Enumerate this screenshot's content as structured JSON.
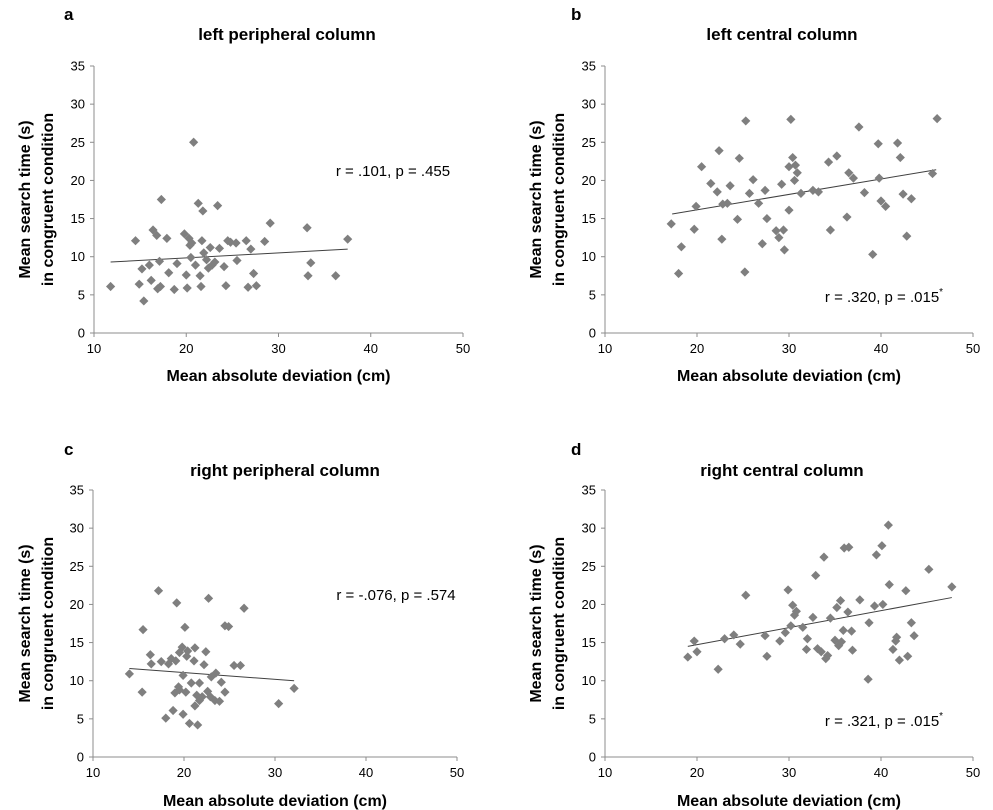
{
  "chart_data": [
    {
      "type": "scatter",
      "panel_label": "a",
      "title": "left peripheral column",
      "xlabel": "Mean absolute deviation (cm)",
      "ylabel_line1": "Mean search time (s)",
      "ylabel_line2": "in congruent condition",
      "xlim": [
        10,
        50
      ],
      "ylim": [
        0,
        35
      ],
      "xticks": [
        10,
        20,
        30,
        40,
        50
      ],
      "yticks": [
        0,
        5,
        10,
        15,
        20,
        25,
        30,
        35
      ],
      "stat": "r = .101, p = .455",
      "stat_sup": "",
      "trend": [
        [
          11.8,
          9.3
        ],
        [
          37.5,
          11.0
        ]
      ],
      "points": [
        [
          11.8,
          6.1
        ],
        [
          14.5,
          12.1
        ],
        [
          14.9,
          6.4
        ],
        [
          15.2,
          8.4
        ],
        [
          15.4,
          4.2
        ],
        [
          16,
          8.9
        ],
        [
          16.2,
          6.9
        ],
        [
          16.4,
          13.5
        ],
        [
          16.8,
          12.8
        ],
        [
          16.9,
          5.8
        ],
        [
          17.1,
          9.4
        ],
        [
          17.2,
          6.1
        ],
        [
          17.3,
          17.5
        ],
        [
          17.9,
          12.4
        ],
        [
          18.1,
          7.9
        ],
        [
          18.7,
          5.7
        ],
        [
          19,
          9.1
        ],
        [
          19.8,
          13
        ],
        [
          20,
          7.6
        ],
        [
          20.1,
          5.9
        ],
        [
          20.3,
          12.4
        ],
        [
          20.4,
          11.5
        ],
        [
          20.5,
          9.9
        ],
        [
          20.6,
          11.8
        ],
        [
          20.8,
          25
        ],
        [
          21,
          8.9
        ],
        [
          21.3,
          17
        ],
        [
          21.5,
          7.5
        ],
        [
          21.6,
          6.1
        ],
        [
          21.7,
          12.1
        ],
        [
          21.8,
          16
        ],
        [
          21.9,
          10.5
        ],
        [
          22.2,
          9.6
        ],
        [
          22.4,
          8.5
        ],
        [
          22.6,
          11.2
        ],
        [
          22.8,
          8.9
        ],
        [
          23.1,
          9.3
        ],
        [
          23.4,
          16.7
        ],
        [
          23.6,
          11.1
        ],
        [
          24.1,
          8.7
        ],
        [
          24.3,
          6.2
        ],
        [
          24.5,
          12.1
        ],
        [
          24.8,
          11.9
        ],
        [
          25.4,
          11.8
        ],
        [
          25.5,
          9.5
        ],
        [
          26.5,
          12.1
        ],
        [
          26.7,
          6
        ],
        [
          27,
          11
        ],
        [
          27.3,
          7.8
        ],
        [
          27.6,
          6.2
        ],
        [
          28.5,
          12
        ],
        [
          29.1,
          14.4
        ],
        [
          33.1,
          13.8
        ],
        [
          33.2,
          7.5
        ],
        [
          33.5,
          9.2
        ],
        [
          36.2,
          7.5
        ],
        [
          37.5,
          12.3
        ]
      ]
    },
    {
      "type": "scatter",
      "panel_label": "b",
      "title": "left central column",
      "xlabel": "Mean absolute deviation (cm)",
      "ylabel_line1": "Mean search time (s)",
      "ylabel_line2": "in congruent condition",
      "xlim": [
        10,
        50
      ],
      "ylim": [
        0,
        35
      ],
      "xticks": [
        10,
        20,
        30,
        40,
        50
      ],
      "yticks": [
        0,
        5,
        10,
        15,
        20,
        25,
        30,
        35
      ],
      "stat": "r = .320, p = .015",
      "stat_sup": "*",
      "trend": [
        [
          17.3,
          15.6
        ],
        [
          46,
          21.4
        ]
      ],
      "points": [
        [
          17.2,
          14.3
        ],
        [
          18,
          7.8
        ],
        [
          18.3,
          11.3
        ],
        [
          19.7,
          13.6
        ],
        [
          19.9,
          16.6
        ],
        [
          20.5,
          21.8
        ],
        [
          21.5,
          19.6
        ],
        [
          22.2,
          18.5
        ],
        [
          22.4,
          23.9
        ],
        [
          22.7,
          12.3
        ],
        [
          22.8,
          16.9
        ],
        [
          23.3,
          17
        ],
        [
          23.6,
          19.3
        ],
        [
          24.4,
          14.9
        ],
        [
          24.6,
          22.9
        ],
        [
          25.2,
          8
        ],
        [
          25.3,
          27.8
        ],
        [
          25.7,
          18.3
        ],
        [
          26.1,
          20.1
        ],
        [
          26.7,
          17
        ],
        [
          27.1,
          11.7
        ],
        [
          27.6,
          15
        ],
        [
          27.4,
          18.7
        ],
        [
          28.6,
          13.4
        ],
        [
          28.9,
          12.5
        ],
        [
          29.2,
          19.5
        ],
        [
          29.4,
          13.5
        ],
        [
          29.5,
          10.9
        ],
        [
          30,
          16.1
        ],
        [
          30,
          21.8
        ],
        [
          30.2,
          28
        ],
        [
          30.4,
          23
        ],
        [
          30.6,
          20
        ],
        [
          30.7,
          22
        ],
        [
          30.9,
          21
        ],
        [
          31.3,
          18.3
        ],
        [
          32.6,
          18.7
        ],
        [
          33.2,
          18.5
        ],
        [
          34.3,
          22.4
        ],
        [
          34.5,
          13.5
        ],
        [
          35.2,
          23.2
        ],
        [
          36.3,
          15.2
        ],
        [
          36.5,
          21
        ],
        [
          37,
          20.3
        ],
        [
          37.6,
          27
        ],
        [
          38.2,
          18.4
        ],
        [
          39.1,
          10.3
        ],
        [
          39.7,
          24.8
        ],
        [
          39.8,
          20.3
        ],
        [
          40,
          17.3
        ],
        [
          40.5,
          16.6
        ],
        [
          41.8,
          24.9
        ],
        [
          42.1,
          23
        ],
        [
          42.4,
          18.2
        ],
        [
          42.8,
          12.7
        ],
        [
          43.3,
          17.6
        ],
        [
          45.6,
          20.9
        ],
        [
          46.1,
          28.1
        ]
      ]
    },
    {
      "type": "scatter",
      "panel_label": "c",
      "title": "right peripheral column",
      "xlabel": "Mean absolute deviation (cm)",
      "ylabel_line1": "Mean search time (s)",
      "ylabel_line2": "in congruent condition",
      "xlim": [
        10,
        50
      ],
      "ylim": [
        0,
        35
      ],
      "xticks": [
        10,
        20,
        30,
        40,
        50
      ],
      "yticks": [
        0,
        5,
        10,
        15,
        20,
        25,
        30,
        35
      ],
      "stat": "r = -.076, p = .574",
      "stat_sup": "",
      "trend": [
        [
          14,
          11.6
        ],
        [
          32.1,
          10.0
        ]
      ],
      "points": [
        [
          14,
          10.9
        ],
        [
          15.4,
          8.5
        ],
        [
          15.5,
          16.7
        ],
        [
          16.3,
          13.4
        ],
        [
          16.4,
          12.2
        ],
        [
          17.2,
          21.8
        ],
        [
          17.5,
          12.5
        ],
        [
          18,
          5.1
        ],
        [
          18.3,
          12.2
        ],
        [
          18.6,
          12.9
        ],
        [
          18.8,
          6.1
        ],
        [
          19,
          8.4
        ],
        [
          19.1,
          12.6
        ],
        [
          19.2,
          20.2
        ],
        [
          19.4,
          9.2
        ],
        [
          19.5,
          8.8
        ],
        [
          19.5,
          13.7
        ],
        [
          19.9,
          5.6
        ],
        [
          19.8,
          14.4
        ],
        [
          19.9,
          10.7
        ],
        [
          20.1,
          17
        ],
        [
          20.2,
          8.5
        ],
        [
          20.3,
          13.2
        ],
        [
          20.4,
          13.9
        ],
        [
          20.6,
          4.4
        ],
        [
          20.8,
          9.7
        ],
        [
          21.1,
          12.6
        ],
        [
          21.2,
          6.7
        ],
        [
          21.2,
          14.3
        ],
        [
          21.4,
          8.1
        ],
        [
          21.5,
          4.2
        ],
        [
          21.7,
          9.7
        ],
        [
          21.7,
          7.4
        ],
        [
          22,
          7.9
        ],
        [
          22.2,
          12.1
        ],
        [
          22.4,
          13.8
        ],
        [
          22.6,
          8.6
        ],
        [
          22.7,
          20.8
        ],
        [
          22.9,
          7.9
        ],
        [
          23,
          10.5
        ],
        [
          23.4,
          7.4
        ],
        [
          23.5,
          11
        ],
        [
          23.9,
          7.3
        ],
        [
          24.1,
          9.8
        ],
        [
          24.5,
          8.5
        ],
        [
          24.5,
          17.2
        ],
        [
          24.9,
          17.1
        ],
        [
          25.5,
          12
        ],
        [
          26.2,
          12
        ],
        [
          26.6,
          19.5
        ],
        [
          30.4,
          7
        ],
        [
          32.1,
          9
        ]
      ]
    },
    {
      "type": "scatter",
      "panel_label": "d",
      "title": "right central column",
      "xlabel": "Mean absolute deviation (cm)",
      "ylabel_line1": "Mean search time (s)",
      "ylabel_line2": "in congruent condition",
      "xlim": [
        10,
        50
      ],
      "ylim": [
        0,
        35
      ],
      "xticks": [
        10,
        20,
        30,
        40,
        50
      ],
      "yticks": [
        0,
        5,
        10,
        15,
        20,
        25,
        30,
        35
      ],
      "stat": "r = .321, p = .015",
      "stat_sup": "*",
      "trend": [
        [
          19,
          14.5
        ],
        [
          47.7,
          20.9
        ]
      ],
      "points": [
        [
          19,
          13.1
        ],
        [
          19.7,
          15.2
        ],
        [
          20,
          13.8
        ],
        [
          22.3,
          11.5
        ],
        [
          23,
          15.5
        ],
        [
          24,
          16
        ],
        [
          24.7,
          14.8
        ],
        [
          25.3,
          21.2
        ],
        [
          27.4,
          15.9
        ],
        [
          27.6,
          13.2
        ],
        [
          29,
          15.2
        ],
        [
          29.6,
          16.3
        ],
        [
          29.9,
          21.9
        ],
        [
          30.2,
          17.2
        ],
        [
          30.4,
          19.9
        ],
        [
          30.6,
          18.6
        ],
        [
          30.8,
          19.1
        ],
        [
          31.5,
          17
        ],
        [
          31.9,
          14.1
        ],
        [
          32,
          15.5
        ],
        [
          32.6,
          18.3
        ],
        [
          32.9,
          23.8
        ],
        [
          33.1,
          14.2
        ],
        [
          33.5,
          13.8
        ],
        [
          33.8,
          26.2
        ],
        [
          34,
          12.9
        ],
        [
          34.2,
          13.3
        ],
        [
          34.5,
          18.2
        ],
        [
          35,
          15.3
        ],
        [
          35.2,
          19.6
        ],
        [
          35.4,
          14.6
        ],
        [
          35.6,
          20.5
        ],
        [
          35.7,
          15.1
        ],
        [
          35.9,
          16.6
        ],
        [
          36,
          27.4
        ],
        [
          36.4,
          19
        ],
        [
          36.5,
          27.5
        ],
        [
          36.8,
          16.5
        ],
        [
          36.9,
          14
        ],
        [
          37.7,
          20.6
        ],
        [
          38.6,
          10.2
        ],
        [
          38.7,
          17.6
        ],
        [
          39.3,
          19.8
        ],
        [
          39.5,
          26.5
        ],
        [
          40.1,
          27.7
        ],
        [
          40.2,
          20
        ],
        [
          40.8,
          30.4
        ],
        [
          40.9,
          22.6
        ],
        [
          41.3,
          14.1
        ],
        [
          41.6,
          15.2
        ],
        [
          41.7,
          15.7
        ],
        [
          42,
          12.7
        ],
        [
          42.7,
          21.8
        ],
        [
          42.9,
          13.2
        ],
        [
          43.3,
          17.6
        ],
        [
          43.6,
          15.9
        ],
        [
          45.2,
          24.6
        ],
        [
          47.7,
          22.3
        ]
      ]
    }
  ]
}
